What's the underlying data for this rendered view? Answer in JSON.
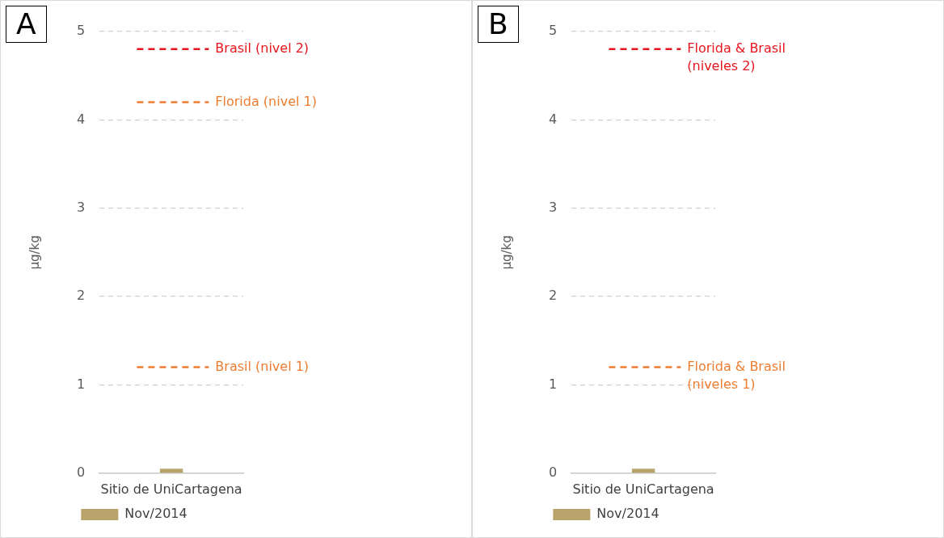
{
  "chart_data": [
    {
      "type": "bar",
      "title": "A",
      "ylabel": "µg/kg",
      "categories": [
        "Sitio de UniCartagena"
      ],
      "series": [
        {
          "name": "Nov/2014",
          "color": "#b8a36a",
          "values": [
            0.05
          ]
        }
      ],
      "ylim": [
        0,
        5
      ],
      "yticks": [
        0,
        1,
        2,
        3,
        4,
        5
      ],
      "grid": "y",
      "legend": "bottom",
      "ref_lines": [
        {
          "axis": "y",
          "value": 4.8,
          "label": "Brasil (nivel 2)",
          "color": "#e8141c",
          "line_style": "dashed"
        },
        {
          "axis": "y",
          "value": 4.2,
          "label": "Florida (nivel 1)",
          "color": "#ed7d31",
          "line_style": "dashed"
        },
        {
          "axis": "y",
          "value": 1.2,
          "label": "Brasil (nivel 1)",
          "color": "#ed7d31",
          "line_style": "dashed"
        }
      ]
    },
    {
      "type": "bar",
      "title": "B",
      "ylabel": "µg/kg",
      "categories": [
        "Sitio de UniCartagena"
      ],
      "series": [
        {
          "name": "Nov/2014",
          "color": "#b8a36a",
          "values": [
            0.05
          ]
        }
      ],
      "ylim": [
        0,
        5
      ],
      "yticks": [
        0,
        1,
        2,
        3,
        4,
        5
      ],
      "grid": "y",
      "legend": "bottom",
      "ref_lines": [
        {
          "axis": "y",
          "value": 4.8,
          "label": "Florida & Brasil (niveles 2)",
          "color": "#e8141c",
          "line_style": "dashed"
        },
        {
          "axis": "y",
          "value": 1.2,
          "label": "Florida & Brasil (niveles 1)",
          "color": "#ed7d31",
          "line_style": "dashed"
        }
      ]
    }
  ]
}
